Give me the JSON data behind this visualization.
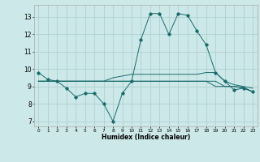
{
  "title": "",
  "xlabel": "Humidex (Indice chaleur)",
  "background_color": "#cce8e8",
  "grid_color": "#aacccc",
  "line_color": "#1a6b6b",
  "xlim": [
    -0.5,
    23.5
  ],
  "ylim": [
    6.7,
    13.7
  ],
  "yticks": [
    7,
    8,
    9,
    10,
    11,
    12,
    13
  ],
  "xticks": [
    0,
    1,
    2,
    3,
    4,
    5,
    6,
    7,
    8,
    9,
    10,
    11,
    12,
    13,
    14,
    15,
    16,
    17,
    18,
    19,
    20,
    21,
    22,
    23
  ],
  "series": [
    [
      9.8,
      9.4,
      9.3,
      8.9,
      8.4,
      8.6,
      8.6,
      8.0,
      7.0,
      8.6,
      9.3,
      11.7,
      13.2,
      13.2,
      12.0,
      13.2,
      13.1,
      12.2,
      11.4,
      9.8,
      9.3,
      8.8,
      8.9,
      8.7
    ],
    [
      9.3,
      9.3,
      9.3,
      9.3,
      9.3,
      9.3,
      9.3,
      9.3,
      9.3,
      9.3,
      9.3,
      9.3,
      9.3,
      9.3,
      9.3,
      9.3,
      9.3,
      9.3,
      9.3,
      9.0,
      9.0,
      9.0,
      8.95,
      8.7
    ],
    [
      9.3,
      9.3,
      9.3,
      9.3,
      9.3,
      9.3,
      9.3,
      9.3,
      9.5,
      9.6,
      9.7,
      9.7,
      9.7,
      9.7,
      9.7,
      9.7,
      9.7,
      9.7,
      9.8,
      9.8,
      9.3,
      9.1,
      9.0,
      8.9
    ],
    [
      9.3,
      9.3,
      9.3,
      9.3,
      9.3,
      9.3,
      9.3,
      9.3,
      9.3,
      9.3,
      9.3,
      9.3,
      9.3,
      9.3,
      9.3,
      9.3,
      9.3,
      9.3,
      9.3,
      9.3,
      9.0,
      9.0,
      8.9,
      8.7
    ]
  ]
}
